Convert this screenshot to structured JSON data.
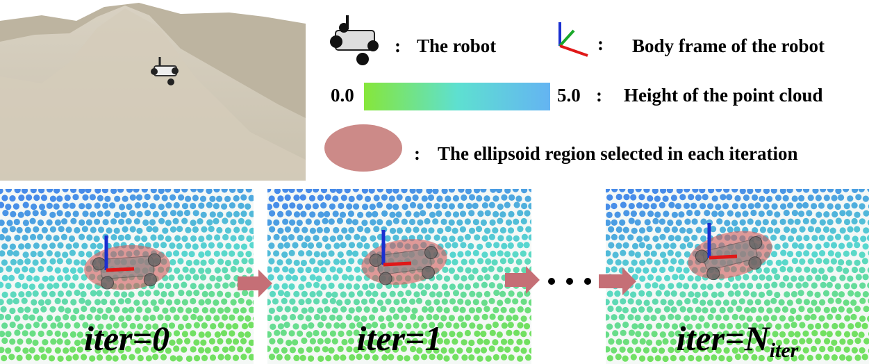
{
  "legend": {
    "items": [
      {
        "label": "The robot",
        "separator": ":"
      },
      {
        "label": "Body frame of the robot",
        "separator": ":"
      },
      {
        "label": "Height of the point cloud",
        "separator": ":",
        "range_min": "0.0",
        "range_max": "5.0"
      },
      {
        "label": "The ellipsoid region selected in each iteration",
        "separator": ":"
      }
    ]
  },
  "panels": [
    {
      "label": "iter=0"
    },
    {
      "label": "iter=1"
    },
    {
      "label": "iter=N",
      "subscript": "iter"
    }
  ]
}
